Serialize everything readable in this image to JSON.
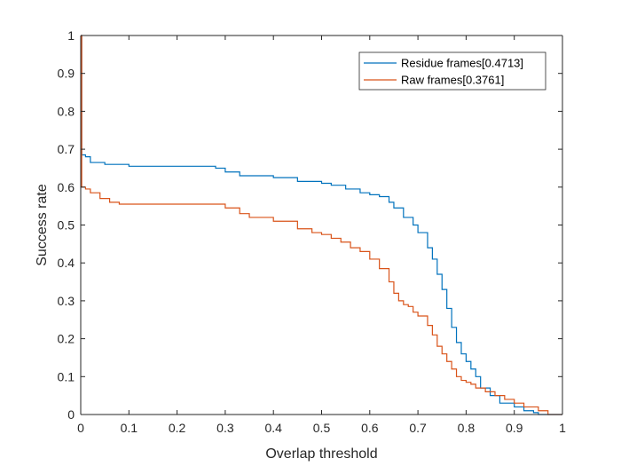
{
  "colors": {
    "residue": "#0072BD",
    "raw": "#D95319",
    "axis": "#262626",
    "background": "#FFFFFF"
  },
  "chart_data": {
    "type": "line",
    "title": "",
    "xlabel": "Overlap threshold",
    "ylabel": "Success rate",
    "xlim": [
      0,
      1
    ],
    "ylim": [
      0,
      1
    ],
    "xticks": [
      0,
      0.1,
      0.2,
      0.3,
      0.4,
      0.5,
      0.6,
      0.7,
      0.8,
      0.9,
      1
    ],
    "xtick_labels": [
      "0",
      "0.1",
      "0.2",
      "0.3",
      "0.4",
      "0.5",
      "0.6",
      "0.7",
      "0.8",
      "0.9",
      "1"
    ],
    "yticks": [
      0,
      0.1,
      0.2,
      0.3,
      0.4,
      0.5,
      0.6,
      0.7,
      0.8,
      0.9,
      1
    ],
    "ytick_labels": [
      "0",
      "0.1",
      "0.2",
      "0.3",
      "0.4",
      "0.5",
      "0.6",
      "0.7",
      "0.8",
      "0.9",
      "1"
    ],
    "grid": false,
    "box": true,
    "legend_position": "top-right",
    "series": [
      {
        "name": "Residue frames[0.4713]",
        "color": "#0072BD",
        "x": [
          0,
          0.002,
          0.01,
          0.02,
          0.05,
          0.1,
          0.2,
          0.28,
          0.3,
          0.33,
          0.4,
          0.45,
          0.5,
          0.52,
          0.55,
          0.58,
          0.6,
          0.62,
          0.64,
          0.65,
          0.67,
          0.69,
          0.7,
          0.72,
          0.73,
          0.74,
          0.75,
          0.76,
          0.77,
          0.78,
          0.79,
          0.8,
          0.81,
          0.82,
          0.83,
          0.85,
          0.87,
          0.9,
          0.92,
          0.94,
          0.95,
          0.97,
          1
        ],
        "y": [
          1,
          0.685,
          0.68,
          0.665,
          0.66,
          0.655,
          0.655,
          0.65,
          0.64,
          0.63,
          0.625,
          0.615,
          0.61,
          0.605,
          0.595,
          0.585,
          0.58,
          0.575,
          0.56,
          0.545,
          0.52,
          0.5,
          0.48,
          0.44,
          0.41,
          0.37,
          0.33,
          0.28,
          0.23,
          0.19,
          0.16,
          0.14,
          0.12,
          0.1,
          0.07,
          0.05,
          0.03,
          0.02,
          0.01,
          0.005,
          0,
          0,
          0
        ]
      },
      {
        "name": "Raw frames[0.3761]",
        "color": "#D95319",
        "x": [
          0,
          0.002,
          0.01,
          0.02,
          0.04,
          0.06,
          0.08,
          0.1,
          0.2,
          0.28,
          0.3,
          0.33,
          0.35,
          0.4,
          0.45,
          0.48,
          0.5,
          0.52,
          0.54,
          0.56,
          0.58,
          0.6,
          0.62,
          0.64,
          0.65,
          0.66,
          0.67,
          0.68,
          0.69,
          0.7,
          0.72,
          0.73,
          0.74,
          0.75,
          0.76,
          0.77,
          0.78,
          0.79,
          0.8,
          0.81,
          0.82,
          0.84,
          0.86,
          0.88,
          0.9,
          0.92,
          0.95,
          0.97,
          1
        ],
        "y": [
          1,
          0.6,
          0.595,
          0.585,
          0.57,
          0.56,
          0.555,
          0.555,
          0.555,
          0.555,
          0.545,
          0.53,
          0.52,
          0.51,
          0.49,
          0.48,
          0.475,
          0.465,
          0.455,
          0.44,
          0.43,
          0.41,
          0.385,
          0.35,
          0.32,
          0.3,
          0.29,
          0.285,
          0.27,
          0.26,
          0.235,
          0.21,
          0.18,
          0.16,
          0.14,
          0.12,
          0.1,
          0.09,
          0.085,
          0.08,
          0.07,
          0.06,
          0.05,
          0.04,
          0.03,
          0.02,
          0.01,
          0,
          0
        ]
      }
    ]
  }
}
